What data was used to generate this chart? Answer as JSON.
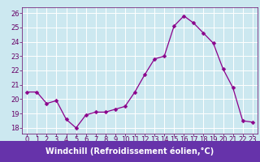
{
  "x": [
    0,
    1,
    2,
    3,
    4,
    5,
    6,
    7,
    8,
    9,
    10,
    11,
    12,
    13,
    14,
    15,
    16,
    17,
    18,
    19,
    20,
    21,
    22,
    23
  ],
  "y": [
    20.5,
    20.5,
    19.7,
    19.9,
    18.6,
    18.0,
    18.9,
    19.1,
    19.1,
    19.3,
    19.5,
    20.5,
    21.7,
    22.8,
    23.0,
    25.1,
    25.8,
    25.3,
    24.6,
    23.9,
    22.1,
    20.8,
    18.5,
    18.4
  ],
  "line_color": "#8B008B",
  "marker": "D",
  "marker_size": 2.5,
  "bg_color": "#cce8f0",
  "grid_color": "#ffffff",
  "xlabel": "Windchill (Refroidissement éolien,°C)",
  "xlabel_bg": "#6633aa",
  "yticks": [
    18,
    19,
    20,
    21,
    22,
    23,
    24,
    25,
    26
  ],
  "xticks": [
    0,
    1,
    2,
    3,
    4,
    5,
    6,
    7,
    8,
    9,
    10,
    11,
    12,
    13,
    14,
    15,
    16,
    17,
    18,
    19,
    20,
    21,
    22,
    23
  ],
  "ylim": [
    17.6,
    26.4
  ],
  "xlim": [
    -0.5,
    23.5
  ],
  "tick_color": "#660066",
  "tick_fontsize": 6,
  "xlabel_fontsize": 7,
  "label_band_color": "#6633aa"
}
